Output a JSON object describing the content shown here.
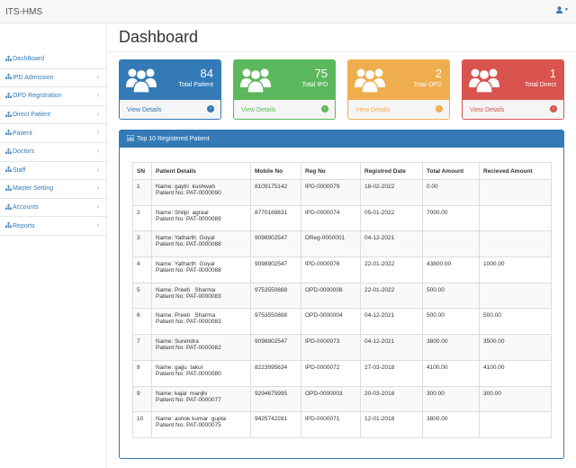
{
  "app": {
    "title": "ITS-HMS"
  },
  "sidebar": {
    "items": [
      {
        "label": "DashBoard",
        "has_chevron": false
      },
      {
        "label": "IPD Admission",
        "has_chevron": true
      },
      {
        "label": "OPD Registration",
        "has_chevron": true
      },
      {
        "label": "Direct Patient",
        "has_chevron": true
      },
      {
        "label": "Patient",
        "has_chevron": true
      },
      {
        "label": "Doctors",
        "has_chevron": true
      },
      {
        "label": "Staff",
        "has_chevron": true
      },
      {
        "label": "Master Setting",
        "has_chevron": true
      },
      {
        "label": "Accounts",
        "has_chevron": true
      },
      {
        "label": "Reports",
        "has_chevron": true
      }
    ]
  },
  "page": {
    "title": "Dashboard"
  },
  "cards": [
    {
      "count": "84",
      "label": "Total Patient",
      "footer": "View Details",
      "color": "#337ab7",
      "footer_color": "#337ab7"
    },
    {
      "count": "75",
      "label": "Total IPD",
      "footer": "View Details",
      "color": "#5cb85c",
      "footer_color": "#5cb85c"
    },
    {
      "count": "2",
      "label": "Total OPD",
      "footer": "View Details",
      "color": "#f0ad4e",
      "footer_color": "#f0ad4e"
    },
    {
      "count": "1",
      "label": "Total Direct",
      "footer": "View Details",
      "color": "#d9534f",
      "footer_color": "#d9534f"
    }
  ],
  "panel": {
    "title": "Top 10 Registered Patient"
  },
  "table": {
    "headers": [
      "SN",
      "Patient Details",
      "Mobile No",
      "Reg No",
      "Registred Date",
      "Total Amount",
      "Recieved Amount"
    ],
    "rows": [
      {
        "sn": "1",
        "name": "Name: gaytri  kushwah",
        "pid": "Patient No: PAT-0000090",
        "mobile": "8109175142",
        "reg": "IPD-0000079",
        "date": "18-02-2022",
        "total": "0.00",
        "received": ""
      },
      {
        "sn": "2",
        "name": "Name: Shilpi  agraal",
        "pid": "Patient No: PAT-0000089",
        "mobile": "8770168831",
        "reg": "IPD-0000074",
        "date": "05-01-2022",
        "total": "7000.00",
        "received": ""
      },
      {
        "sn": "3",
        "name": "Name: Yatharth  Goyal",
        "pid": "Patient No: PAT-0000088",
        "mobile": "9098902547",
        "reg": "DReg-0000001",
        "date": "04-12-2021",
        "total": "",
        "received": ""
      },
      {
        "sn": "4",
        "name": "Name: Yatharth  Goyal",
        "pid": "Patient No: PAT-0000088",
        "mobile": "9098902547",
        "reg": "IPD-0000076",
        "date": "22-01-2022",
        "total": "43800.00",
        "received": "1000.00"
      },
      {
        "sn": "5",
        "name": "Name: Preeti   Sharma",
        "pid": "Patient No: PAT-0000083",
        "mobile": "9753550888",
        "reg": "OPD-0000008",
        "date": "22-01-2022",
        "total": "500.00",
        "received": ""
      },
      {
        "sn": "6",
        "name": "Name: Preeti   Sharma",
        "pid": "Patient No: PAT-0000083",
        "mobile": "9753550888",
        "reg": "OPD-0000004",
        "date": "04-12-2021",
        "total": "500.00",
        "received": "500.00"
      },
      {
        "sn": "7",
        "name": "Name: Surendra",
        "pid": "Patient No: PAT-0000082",
        "mobile": "9098902547",
        "reg": "IPD-0000073",
        "date": "04-12-2021",
        "total": "3800.00",
        "received": "3500.00"
      },
      {
        "sn": "8",
        "name": "Name: gajju  takur",
        "pid": "Patient No: PAT-0000080",
        "mobile": "8223995634",
        "reg": "IPD-0000072",
        "date": "27-03-2018",
        "total": "4100.00",
        "received": "4100.00"
      },
      {
        "sn": "9",
        "name": "Name: kajal  manjhi",
        "pid": "Patient No: PAT-0000077",
        "mobile": "9294675995",
        "reg": "OPD-0000003",
        "date": "20-03-2018",
        "total": "300.00",
        "received": "300.00"
      },
      {
        "sn": "10",
        "name": "Name: ashok kumar  gupta",
        "pid": "Patient No: PAT-0000075",
        "mobile": "9425742281",
        "reg": "IPD-0000071",
        "date": "12-01-2018",
        "total": "3800.00",
        "received": ""
      }
    ]
  },
  "icons": {
    "user": "user-icon",
    "sitemap": "sitemap-icon",
    "users": "users-icon",
    "chart": "bar-chart-icon",
    "arrow": "arrow-circle-right-icon"
  }
}
